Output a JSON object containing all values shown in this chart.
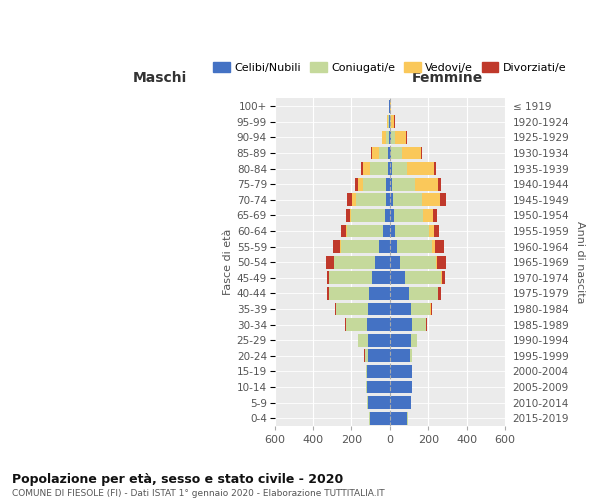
{
  "age_groups": [
    "0-4",
    "5-9",
    "10-14",
    "15-19",
    "20-24",
    "25-29",
    "30-34",
    "35-39",
    "40-44",
    "45-49",
    "50-54",
    "55-59",
    "60-64",
    "65-69",
    "70-74",
    "75-79",
    "80-84",
    "85-89",
    "90-94",
    "95-99",
    "100+"
  ],
  "birth_years": [
    "2015-2019",
    "2010-2014",
    "2005-2009",
    "2000-2004",
    "1995-1999",
    "1990-1994",
    "1985-1989",
    "1980-1984",
    "1975-1979",
    "1970-1974",
    "1965-1969",
    "1960-1964",
    "1955-1959",
    "1950-1954",
    "1945-1949",
    "1940-1944",
    "1935-1939",
    "1930-1934",
    "1925-1929",
    "1920-1924",
    "≤ 1919"
  ],
  "male": {
    "celibi": [
      105,
      115,
      120,
      120,
      115,
      115,
      120,
      115,
      110,
      95,
      75,
      55,
      35,
      25,
      20,
      18,
      12,
      8,
      5,
      3,
      2
    ],
    "coniugati": [
      2,
      2,
      2,
      5,
      15,
      50,
      110,
      165,
      205,
      220,
      215,
      200,
      190,
      175,
      155,
      120,
      90,
      50,
      15,
      5,
      0
    ],
    "vedovi": [
      0,
      0,
      0,
      0,
      0,
      0,
      0,
      0,
      0,
      0,
      2,
      3,
      5,
      10,
      20,
      30,
      40,
      35,
      20,
      5,
      0
    ],
    "divorziati": [
      0,
      0,
      0,
      0,
      2,
      2,
      5,
      8,
      12,
      12,
      40,
      40,
      25,
      18,
      30,
      12,
      10,
      5,
      2,
      0,
      0
    ]
  },
  "female": {
    "nubili": [
      90,
      110,
      115,
      115,
      105,
      110,
      115,
      110,
      100,
      80,
      55,
      35,
      28,
      20,
      15,
      12,
      10,
      8,
      5,
      3,
      2
    ],
    "coniugate": [
      2,
      2,
      2,
      3,
      10,
      30,
      75,
      100,
      150,
      185,
      185,
      185,
      175,
      155,
      155,
      120,
      80,
      55,
      20,
      5,
      0
    ],
    "vedove": [
      0,
      0,
      0,
      0,
      0,
      0,
      0,
      2,
      3,
      5,
      8,
      15,
      25,
      50,
      90,
      120,
      140,
      100,
      60,
      15,
      2
    ],
    "divorziate": [
      0,
      0,
      0,
      0,
      0,
      2,
      5,
      8,
      12,
      15,
      45,
      45,
      30,
      22,
      35,
      15,
      10,
      5,
      3,
      2,
      0
    ]
  },
  "colors": {
    "celibi": "#4472c4",
    "coniugati": "#c5d99b",
    "vedovi": "#fac85a",
    "divorziati": "#c0392b"
  },
  "title": "Popolazione per età, sesso e stato civile - 2020",
  "subtitle": "COMUNE DI FIESOLE (FI) - Dati ISTAT 1° gennaio 2020 - Elaborazione TUTTITALIA.IT",
  "xlabel_left": "Maschi",
  "xlabel_right": "Femmine",
  "ylabel_left": "Fasce di età",
  "ylabel_right": "Anni di nascita",
  "xlim": 600,
  "legend_labels": [
    "Celibi/Nubili",
    "Coniugati/e",
    "Vedovi/e",
    "Divorziati/e"
  ],
  "background_color": "#ffffff",
  "axes_background": "#ebebeb"
}
